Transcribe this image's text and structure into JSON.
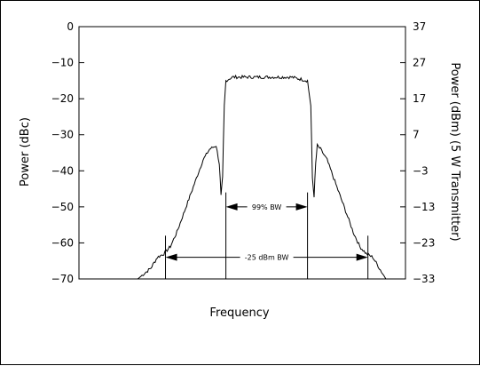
{
  "chart_data": {
    "type": "line",
    "title": "",
    "xlabel": "Frequency",
    "ylabel": "Power (dBc)",
    "ylabel_right": "Power (dBm) (5 W Transmitter)",
    "ylim": [
      -70,
      0
    ],
    "ylim_right": [
      -33,
      37
    ],
    "yticks": [
      0,
      -10,
      -20,
      -30,
      -40,
      -50,
      -60,
      -70
    ],
    "yticks_right": [
      37,
      27,
      17,
      7,
      -3,
      -13,
      -23,
      -33
    ],
    "x_tick_labels_shown": false,
    "xlim": [
      0,
      100
    ],
    "grid": false,
    "series": [
      {
        "x": [
          0,
          18,
          22,
          24,
          26,
          28,
          30,
          32,
          34,
          36,
          38,
          40,
          42,
          43,
          43.5,
          44,
          44.5,
          45,
          47,
          50,
          55,
          60,
          65,
          70,
          71,
          71.5,
          72,
          72.5,
          73,
          74,
          76,
          78,
          80,
          82,
          84,
          86,
          88,
          90,
          92,
          94,
          96,
          98,
          100
        ],
        "values": [
          -70,
          -70,
          -67,
          -64,
          -63,
          -61,
          -57,
          -52,
          -47,
          -42,
          -37,
          -34,
          -33,
          -38,
          -47,
          -42,
          -22,
          -15,
          -14,
          -14,
          -14,
          -14,
          -14,
          -15,
          -22,
          -42,
          -47,
          -38,
          -33,
          -34,
          -37,
          -42,
          -47,
          -52,
          -57,
          -61,
          -63,
          -64,
          -67,
          -70,
          -70,
          -70,
          -70
        ]
      }
    ],
    "annotations": [
      {
        "label": "99% BW",
        "x_from": 45,
        "x_to": 70,
        "y": -50
      },
      {
        "label": "-25 dBm BW",
        "x_from": 26.5,
        "x_to": 88.5,
        "y": -64
      }
    ]
  }
}
